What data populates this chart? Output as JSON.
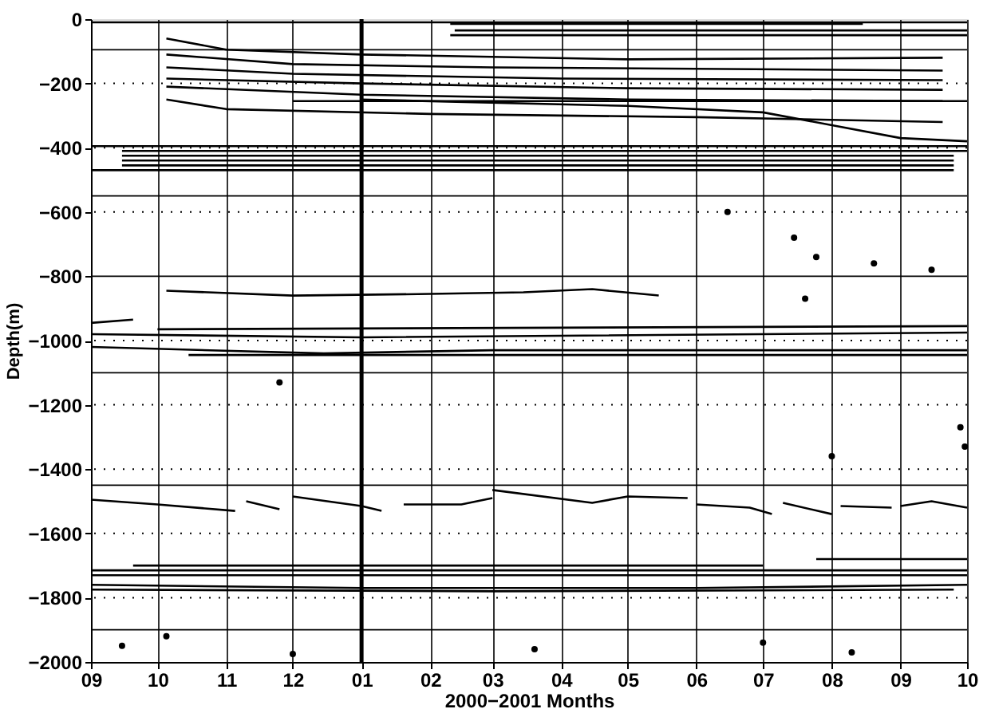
{
  "chart_data": {
    "type": "line",
    "xlabel": "2000−2001 Months",
    "ylabel": "Depth(m)",
    "xlim": [
      "2000-09-01",
      "2001-10-01"
    ],
    "xticks": [
      {
        "value": "2000-09-01",
        "label": "09"
      },
      {
        "value": "2000-10-01",
        "label": "10"
      },
      {
        "value": "2000-11-01",
        "label": "11"
      },
      {
        "value": "2000-12-01",
        "label": "12"
      },
      {
        "value": "2001-01-01",
        "label": "01"
      },
      {
        "value": "2001-02-01",
        "label": "02"
      },
      {
        "value": "2001-03-01",
        "label": "03"
      },
      {
        "value": "2001-04-01",
        "label": "04"
      },
      {
        "value": "2001-05-01",
        "label": "05"
      },
      {
        "value": "2001-06-01",
        "label": "06"
      },
      {
        "value": "2001-07-01",
        "label": "07"
      },
      {
        "value": "2001-08-01",
        "label": "08"
      },
      {
        "value": "2001-09-01",
        "label": "09"
      },
      {
        "value": "2001-10-01",
        "label": "10"
      }
    ],
    "ylim": [
      -2000,
      0
    ],
    "yticks": [
      -2000,
      -1800,
      -1600,
      -1400,
      -1200,
      -1000,
      -800,
      -600,
      -400,
      -200,
      0
    ],
    "grid": true,
    "line_style": "solid",
    "marker": "none",
    "ref_lines": [
      {
        "axis": "x",
        "value": "2001-01-01",
        "color": "#000000",
        "line_style": "solid"
      },
      {
        "axis": "y",
        "value": -95,
        "color": "#000000",
        "line_style": "solid"
      },
      {
        "axis": "y",
        "value": -550,
        "color": "#000000",
        "line_style": "solid"
      },
      {
        "axis": "y",
        "value": -800,
        "color": "#000000",
        "line_style": "solid"
      },
      {
        "axis": "y",
        "value": -1100,
        "color": "#000000",
        "line_style": "solid"
      },
      {
        "axis": "y",
        "value": -1450,
        "color": "#000000",
        "line_style": "solid"
      },
      {
        "axis": "y",
        "value": -1900,
        "color": "#000000",
        "line_style": "solid"
      }
    ],
    "series": [
      {
        "color": "#000000",
        "x": [
          "2000-09-01",
          "2001-10-01"
        ],
        "values": [
          -10,
          -10
        ]
      },
      {
        "color": "#000000",
        "x": [
          "2001-02-10",
          "2001-08-15"
        ],
        "values": [
          -15,
          -15
        ]
      },
      {
        "color": "#000000",
        "x": [
          "2001-02-12",
          "2001-10-01"
        ],
        "values": [
          -35,
          -35
        ]
      },
      {
        "color": "#000000",
        "x": [
          "2001-02-10",
          "2001-10-01"
        ],
        "values": [
          -50,
          -50
        ]
      },
      {
        "color": "#000000",
        "x": [
          "2000-10-05",
          "2000-11-01",
          "2001-01-01",
          "2001-05-01",
          "2001-09-20"
        ],
        "values": [
          -60,
          -95,
          -110,
          -125,
          -120
        ]
      },
      {
        "color": "#000000",
        "x": [
          "2000-10-05",
          "2000-12-01",
          "2001-03-01",
          "2001-09-20"
        ],
        "values": [
          -110,
          -140,
          -150,
          -160
        ]
      },
      {
        "color": "#000000",
        "x": [
          "2000-10-05",
          "2000-12-01",
          "2001-04-01",
          "2001-09-20"
        ],
        "values": [
          -150,
          -170,
          -185,
          -190
        ]
      },
      {
        "color": "#000000",
        "x": [
          "2000-10-05",
          "2001-01-01",
          "2001-05-01",
          "2001-09-20"
        ],
        "values": [
          -185,
          -200,
          -215,
          -220
        ]
      },
      {
        "color": "#000000",
        "x": [
          "2000-10-05",
          "2001-01-01",
          "2001-05-01",
          "2001-09-20"
        ],
        "values": [
          -210,
          -235,
          -250,
          -255
        ]
      },
      {
        "color": "#000000",
        "x": [
          "2000-12-01",
          "2001-10-01"
        ],
        "values": [
          -255,
          -255
        ]
      },
      {
        "color": "#000000",
        "x": [
          "2000-10-05",
          "2000-11-01",
          "2001-02-01",
          "2001-06-01",
          "2001-09-20"
        ],
        "values": [
          -250,
          -280,
          -295,
          -305,
          -320
        ]
      },
      {
        "color": "#000000",
        "x": [
          "2001-01-01",
          "2001-05-01",
          "2001-07-01",
          "2001-09-01",
          "2001-10-01"
        ],
        "values": [
          -250,
          -270,
          -290,
          -370,
          -380
        ]
      },
      {
        "color": "#000000",
        "x": [
          "2000-09-01",
          "2001-10-01"
        ],
        "values": [
          -395,
          -395
        ]
      },
      {
        "color": "#000000",
        "x": [
          "2000-09-15",
          "2001-10-01"
        ],
        "values": [
          -410,
          -410
        ]
      },
      {
        "color": "#000000",
        "x": [
          "2000-09-15",
          "2001-09-25"
        ],
        "values": [
          -425,
          -425
        ]
      },
      {
        "color": "#000000",
        "x": [
          "2000-09-15",
          "2001-09-25"
        ],
        "values": [
          -440,
          -440
        ]
      },
      {
        "color": "#000000",
        "x": [
          "2000-09-15",
          "2001-09-25"
        ],
        "values": [
          -455,
          -455
        ]
      },
      {
        "color": "#000000",
        "x": [
          "2000-09-01",
          "2001-09-25"
        ],
        "values": [
          -470,
          -470
        ]
      },
      {
        "color": "#000000",
        "x": [
          "2000-10-05",
          "2000-12-01",
          "2001-02-01",
          "2001-03-15",
          "2001-04-15",
          "2001-05-15"
        ],
        "values": [
          -845,
          -860,
          -855,
          -850,
          -840,
          -860
        ]
      },
      {
        "color": "#000000",
        "x": [
          "2000-09-01",
          "2000-09-20"
        ],
        "values": [
          -945,
          -935
        ]
      },
      {
        "color": "#000000",
        "x": [
          "2000-10-01",
          "2001-04-01",
          "2001-10-01"
        ],
        "values": [
          -965,
          -960,
          -955
        ]
      },
      {
        "color": "#000000",
        "x": [
          "2000-09-01",
          "2001-01-01",
          "2001-10-01"
        ],
        "values": [
          -980,
          -990,
          -975
        ]
      },
      {
        "color": "#000000",
        "x": [
          "2000-09-01",
          "2000-12-15",
          "2001-03-01",
          "2001-10-01"
        ],
        "values": [
          -1020,
          -1040,
          -1030,
          -1030
        ]
      },
      {
        "color": "#000000",
        "x": [
          "2000-10-15",
          "2001-10-01"
        ],
        "values": [
          -1045,
          -1045
        ]
      },
      {
        "color": "#000000",
        "x": [
          "2000-09-01",
          "2000-10-01",
          "2000-11-05"
        ],
        "values": [
          -1495,
          -1510,
          -1530
        ]
      },
      {
        "color": "#000000",
        "x": [
          "2000-11-10",
          "2000-11-25"
        ],
        "values": [
          -1500,
          -1525
        ]
      },
      {
        "color": "#000000",
        "x": [
          "2000-12-01",
          "2001-01-01",
          "2001-01-10"
        ],
        "values": [
          -1485,
          -1515,
          -1530
        ]
      },
      {
        "color": "#000000",
        "x": [
          "2001-01-20",
          "2001-02-15",
          "2001-03-01"
        ],
        "values": [
          -1510,
          -1510,
          -1490
        ]
      },
      {
        "color": "#000000",
        "x": [
          "2001-03-01",
          "2001-04-15",
          "2001-05-01",
          "2001-05-28"
        ],
        "values": [
          -1465,
          -1505,
          -1485,
          -1490
        ]
      },
      {
        "color": "#000000",
        "x": [
          "2001-06-01",
          "2001-06-25",
          "2001-07-05"
        ],
        "values": [
          -1510,
          -1520,
          -1540
        ]
      },
      {
        "color": "#000000",
        "x": [
          "2001-07-10",
          "2001-08-01"
        ],
        "values": [
          -1505,
          -1540
        ]
      },
      {
        "color": "#000000",
        "x": [
          "2001-08-05",
          "2001-08-28"
        ],
        "values": [
          -1515,
          -1520
        ]
      },
      {
        "color": "#000000",
        "x": [
          "2001-09-01",
          "2001-09-15",
          "2001-10-01"
        ],
        "values": [
          -1515,
          -1500,
          -1520
        ]
      },
      {
        "color": "#000000",
        "x": [
          "2001-07-25",
          "2001-10-01"
        ],
        "values": [
          -1680,
          -1680
        ]
      },
      {
        "color": "#000000",
        "x": [
          "2000-09-20",
          "2001-07-01"
        ],
        "values": [
          -1700,
          -1700
        ]
      },
      {
        "color": "#000000",
        "x": [
          "2000-09-01",
          "2001-10-01"
        ],
        "values": [
          -1715,
          -1715
        ]
      },
      {
        "color": "#000000",
        "x": [
          "2000-09-01",
          "2001-10-01"
        ],
        "values": [
          -1730,
          -1730
        ]
      },
      {
        "color": "#000000",
        "x": [
          "2000-09-01",
          "2001-01-01",
          "2001-06-01",
          "2001-10-01"
        ],
        "values": [
          -1760,
          -1770,
          -1770,
          -1760
        ]
      },
      {
        "color": "#000000",
        "x": [
          "2000-09-01",
          "2001-03-01",
          "2001-09-25"
        ],
        "values": [
          -1775,
          -1780,
          -1775
        ]
      },
      {
        "type": "scatter",
        "marker": "circle",
        "color": "#000000",
        "x": [
          "2000-09-15",
          "2000-10-05",
          "2001-07-01",
          "2001-08-10",
          "2000-12-01",
          "2001-03-20",
          "2001-07-15",
          "2001-07-25",
          "2001-08-20",
          "2001-09-15",
          "2001-07-20",
          "2001-09-28",
          "2001-09-30",
          "2001-08-01",
          "2000-11-25",
          "2001-06-15"
        ],
        "values": [
          -1950,
          -1920,
          -1940,
          -1970,
          -1975,
          -1960,
          -680,
          -740,
          -760,
          -780,
          -870,
          -1270,
          -1330,
          -1360,
          -1130,
          -600
        ]
      }
    ]
  }
}
